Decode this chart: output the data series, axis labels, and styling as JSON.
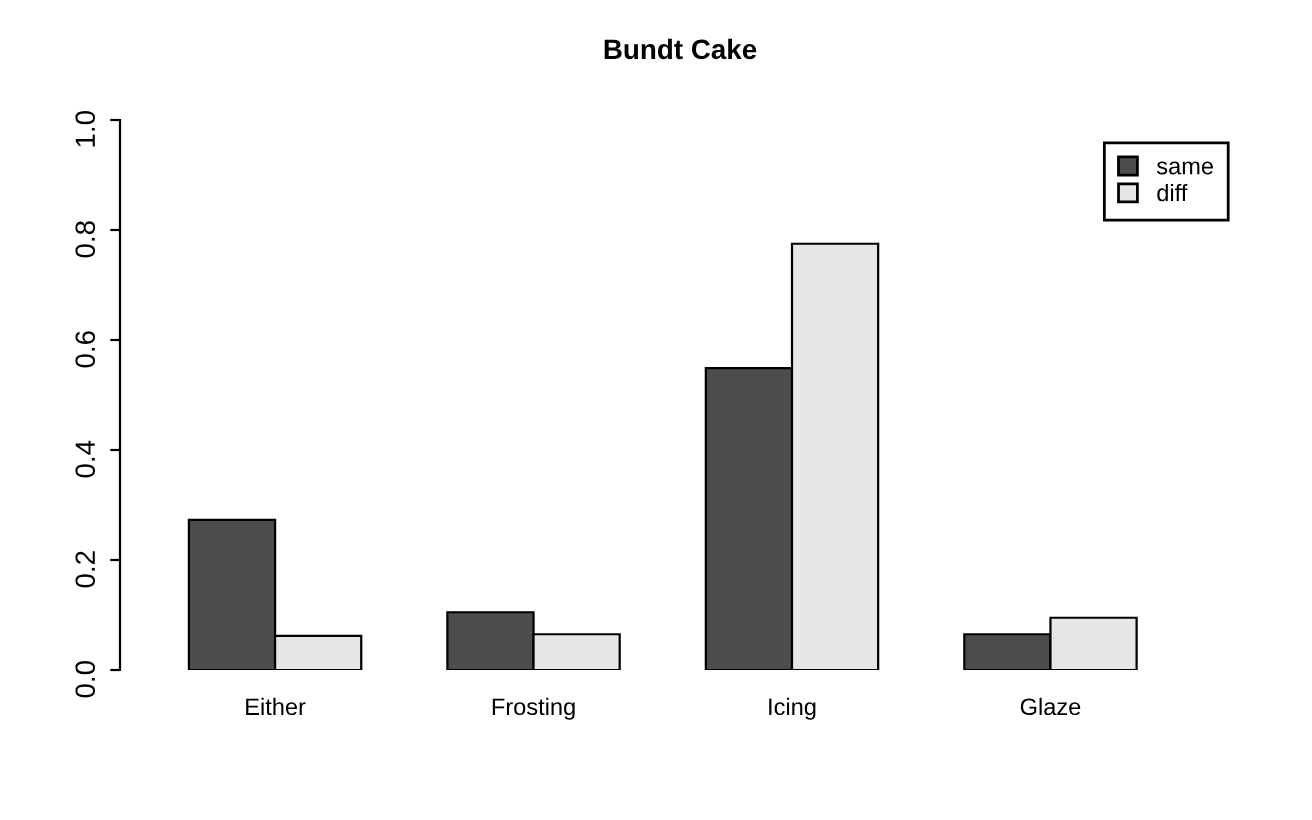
{
  "chart_data": {
    "type": "bar",
    "title": "Bundt Cake",
    "categories": [
      "Either",
      "Frosting",
      "Icing",
      "Glaze"
    ],
    "series": [
      {
        "name": "same",
        "color": "#4d4d4d",
        "values": [
          0.273,
          0.105,
          0.549,
          0.065
        ]
      },
      {
        "name": "diff",
        "color": "#e6e6e6",
        "values": [
          0.062,
          0.065,
          0.775,
          0.095
        ]
      }
    ],
    "ylim": [
      0,
      1
    ],
    "yticks": [
      {
        "value": 0,
        "label": "0.0"
      },
      0.2,
      0.4,
      0.6,
      0.8,
      {
        "value": 1,
        "label": "1.0"
      }
    ],
    "grid": false,
    "legend": "top right"
  }
}
